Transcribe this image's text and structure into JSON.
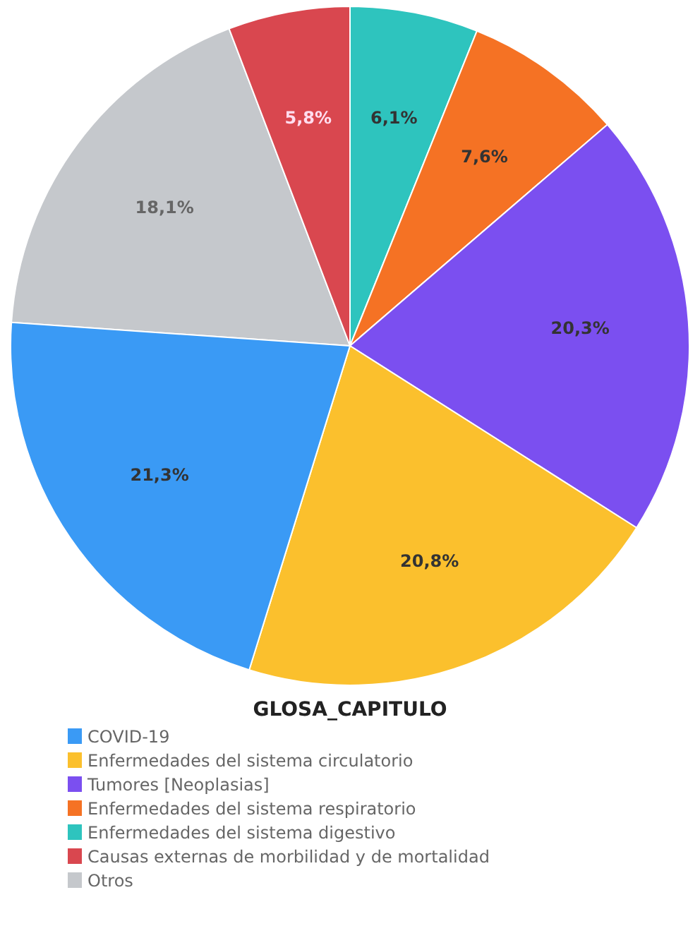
{
  "chart_data": {
    "type": "pie",
    "legend_title": "GLOSA_CAPITULO",
    "legend": "bottom",
    "categories": [
      "COVID-19",
      "Enfermedades del sistema circulatorio",
      "Tumores [Neoplasias]",
      "Enfermedades del sistema respiratorio",
      "Enfermedades del sistema digestivo",
      "Causas externas de morbilidad y de mortalidad",
      "Otros"
    ],
    "values": [
      21.3,
      20.8,
      20.3,
      7.6,
      6.1,
      5.8,
      18.1
    ],
    "value_labels": [
      "21,3%",
      "20,8%",
      "20,3%",
      "7,6%",
      "6,1%",
      "5,8%",
      "18,1%"
    ],
    "colors": [
      "#3a9af5",
      "#fbc02d",
      "#7b4ff0",
      "#f57224",
      "#2ec4be",
      "#d9474f",
      "#c5c8cc"
    ]
  }
}
